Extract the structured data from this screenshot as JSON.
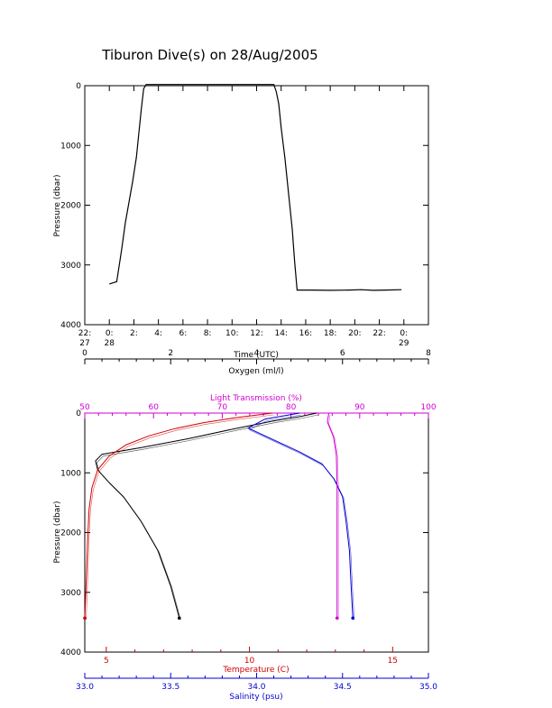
{
  "title": "Tiburon Dive(s) on 28/Aug/2005",
  "colors": {
    "temperature": "#d00000",
    "salinity": "#0000d0",
    "light": "#d000d0",
    "oxygen": "#000000",
    "axis": "#000000"
  },
  "chart_data": [
    {
      "type": "line",
      "title": "Tiburon Dive(s) on 28/Aug/2005",
      "xlabel": "Time (UTC)",
      "ylabel": "Pressure (dbar)",
      "ylim": [
        4000,
        0
      ],
      "y_reversed": true,
      "xlim_hours": [
        -2,
        26
      ],
      "x_ticks": [
        {
          "h": -2,
          "line1": "22:",
          "line2": "27"
        },
        {
          "h": 0,
          "line1": "0:",
          "line2": "28"
        },
        {
          "h": 2,
          "line1": "2:",
          "line2": ""
        },
        {
          "h": 4,
          "line1": "4:",
          "line2": ""
        },
        {
          "h": 6,
          "line1": "6:",
          "line2": ""
        },
        {
          "h": 8,
          "line1": "8:",
          "line2": ""
        },
        {
          "h": 10,
          "line1": "10:",
          "line2": ""
        },
        {
          "h": 12,
          "line1": "12:",
          "line2": ""
        },
        {
          "h": 14,
          "line1": "14:",
          "line2": ""
        },
        {
          "h": 16,
          "line1": "16:",
          "line2": ""
        },
        {
          "h": 18,
          "line1": "18:",
          "line2": ""
        },
        {
          "h": 20,
          "line1": "20:",
          "line2": ""
        },
        {
          "h": 22,
          "line1": "22:",
          "line2": ""
        },
        {
          "h": 24,
          "line1": "0:",
          "line2": "29"
        }
      ],
      "y_ticks": [
        0,
        1000,
        2000,
        3000,
        4000
      ],
      "series": [
        {
          "x_hours": [
            0.0,
            0.3,
            0.6,
            1.0,
            1.3,
            1.6,
            1.9,
            2.2,
            2.4,
            2.6,
            2.8,
            3.0,
            5.0,
            8.0,
            11.0,
            13.4,
            13.6,
            13.8,
            14.0,
            14.3,
            14.6,
            14.9,
            15.1,
            15.3,
            16.5,
            18.0,
            19.5,
            20.5,
            21.5,
            22.5,
            23.8
          ],
          "pressure": [
            3320,
            3300,
            3280,
            2750,
            2300,
            1950,
            1600,
            1200,
            800,
            400,
            50,
            -20,
            -20,
            -20,
            -20,
            -20,
            100,
            300,
            700,
            1200,
            1800,
            2400,
            2950,
            3420,
            3420,
            3425,
            3420,
            3415,
            3425,
            3420,
            3415
          ]
        }
      ]
    },
    {
      "type": "line",
      "ylabel": "Pressure (dbar)",
      "ylim": [
        4000,
        0
      ],
      "y_reversed": true,
      "y_ticks": [
        0,
        1000,
        2000,
        3000,
        4000
      ],
      "axes": {
        "oxygen": {
          "label": "Oxygen (ml/l)",
          "range": [
            0,
            8
          ],
          "ticks": [
            0,
            2,
            4,
            6,
            8
          ],
          "tick_labels": [
            "0",
            "2",
            "4",
            "6",
            "8"
          ]
        },
        "light": {
          "label": "Light Transmission (%)",
          "range": [
            50,
            100
          ],
          "ticks": [
            50,
            60,
            70,
            80,
            90,
            100
          ],
          "tick_labels": [
            "50",
            "60",
            "70",
            "80",
            "90",
            "100"
          ]
        },
        "temperature": {
          "label": "Temperature (C)",
          "range": [
            4.25,
            16.25
          ],
          "ticks": [
            5,
            10,
            15
          ],
          "tick_labels": [
            "5",
            "10",
            "15"
          ]
        },
        "salinity": {
          "label": "Salinity (psu)",
          "range": [
            33.0,
            35.0
          ],
          "ticks": [
            33.0,
            33.5,
            34.0,
            34.5,
            35.0
          ],
          "tick_labels": [
            "33.0",
            "33.5",
            "34.0",
            "34.5",
            "35.0"
          ]
        }
      },
      "series": [
        {
          "name": "Oxygen",
          "axis": "oxygen",
          "x": [
            5.4,
            5.0,
            4.4,
            3.5,
            2.4,
            1.3,
            0.4,
            0.25,
            0.3,
            0.55,
            0.9,
            1.3,
            1.7,
            2.0,
            2.2
          ],
          "pressure": [
            0,
            60,
            130,
            260,
            430,
            580,
            690,
            800,
            950,
            1150,
            1400,
            1800,
            2300,
            2900,
            3430
          ]
        },
        {
          "name": "Temperature",
          "axis": "temperature",
          "x": [
            10.8,
            9.5,
            8.4,
            7.4,
            6.5,
            5.7,
            5.1,
            4.7,
            4.5,
            4.4,
            4.35,
            4.3,
            4.25
          ],
          "pressure": [
            0,
            80,
            160,
            260,
            380,
            530,
            720,
            950,
            1250,
            1600,
            2100,
            2800,
            3430
          ]
        },
        {
          "name": "Salinity",
          "axis": "salinity",
          "x": [
            34.25,
            34.05,
            33.95,
            34.1,
            34.25,
            34.38,
            34.45,
            34.5,
            34.52,
            34.54,
            34.55,
            34.56
          ],
          "pressure": [
            0,
            100,
            250,
            450,
            650,
            850,
            1100,
            1400,
            1800,
            2300,
            2900,
            3430
          ]
        },
        {
          "name": "Light Transmission",
          "axis": "light",
          "x": [
            85.5,
            85.3,
            86.2,
            86.6,
            86.7,
            86.7,
            86.7,
            86.7
          ],
          "pressure": [
            0,
            150,
            400,
            700,
            1200,
            2000,
            2800,
            3430
          ]
        }
      ]
    }
  ]
}
